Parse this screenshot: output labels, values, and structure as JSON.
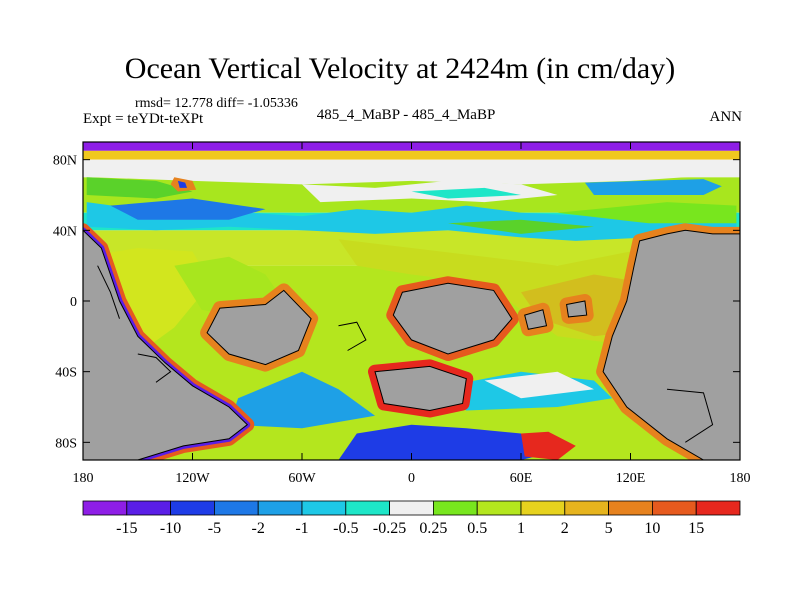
{
  "header": {
    "title": "Ocean Vertical Velocity at 2424m (in cm/day)",
    "stats": "rmsd= 12.778 diff= -1.05336",
    "expt": "Expt = teYDt-teXPt",
    "case": "485_4_MaBP - 485_4_MaBP",
    "season": "ANN"
  },
  "chart_data": {
    "type": "heatmap",
    "title": "Ocean Vertical Velocity at 2424m (in cm/day)",
    "xlim": [
      -180,
      180
    ],
    "ylim": [
      -90,
      90
    ],
    "x_ticks": [
      {
        "value": -180,
        "label": "180"
      },
      {
        "value": -120,
        "label": "120W"
      },
      {
        "value": -60,
        "label": "60W"
      },
      {
        "value": 0,
        "label": "0"
      },
      {
        "value": 60,
        "label": "60E"
      },
      {
        "value": 120,
        "label": "120E"
      },
      {
        "value": 180,
        "label": "180"
      }
    ],
    "y_ticks": [
      {
        "value": 80,
        "label": "80N"
      },
      {
        "value": 40,
        "label": "40N"
      },
      {
        "value": 0,
        "label": "0"
      },
      {
        "value": -40,
        "label": "40S"
      },
      {
        "value": -80,
        "label": "80S"
      }
    ],
    "colorbar": {
      "labels": [
        "-15",
        "-10",
        "-5",
        "-2",
        "-1",
        "-0.5",
        "-0.25",
        "0.25",
        "0.5",
        "1",
        "2",
        "5",
        "10",
        "15"
      ],
      "colors": [
        "#8e1ee6",
        "#5a1ee6",
        "#1e3ce6",
        "#1e78e6",
        "#1ea0e6",
        "#1ec8e6",
        "#1ee6c8",
        "#f0f0f0",
        "#78e61e",
        "#b4e61e",
        "#e6d21e",
        "#e6b41e",
        "#e6821e",
        "#e65a1e",
        "#e6281e"
      ]
    },
    "land_color": "#a0a0a0"
  }
}
